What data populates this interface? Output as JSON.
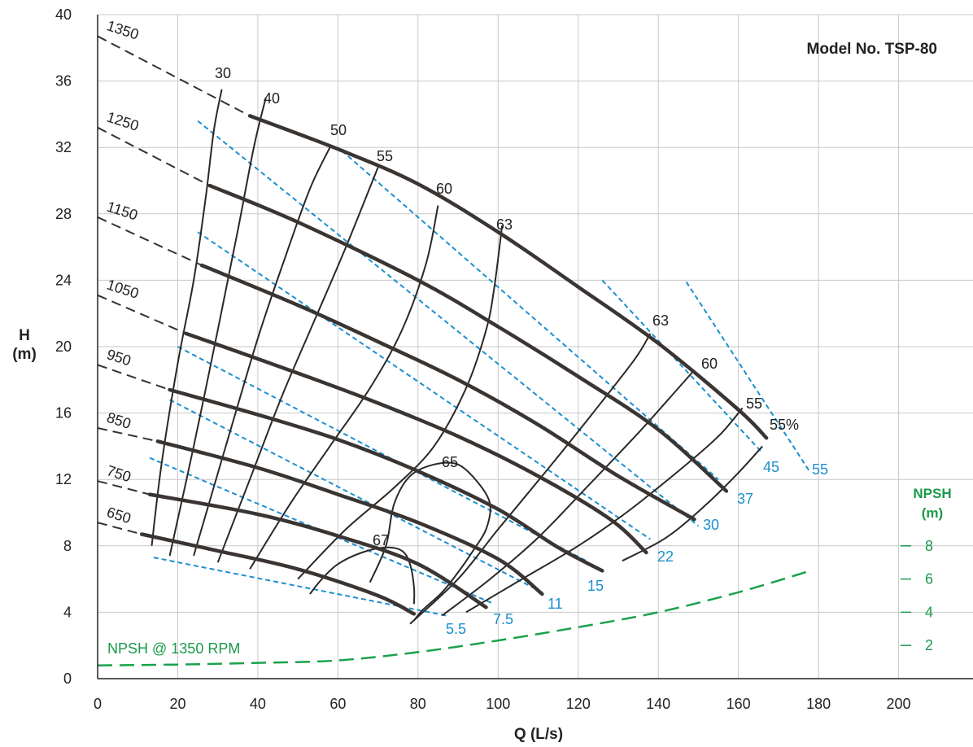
{
  "chart_data": {
    "type": "line",
    "title": "Model No. TSP-80",
    "xlabel": "Q (L/s)",
    "ylabel_line1": "H",
    "ylabel_line2": "(m)",
    "xlim": [
      0,
      220
    ],
    "ylim": [
      0,
      40
    ],
    "x_ticks": [
      0,
      20,
      40,
      60,
      80,
      100,
      120,
      140,
      160,
      180,
      200
    ],
    "y_ticks": [
      0,
      4,
      8,
      12,
      16,
      20,
      24,
      28,
      32,
      36,
      40
    ],
    "grid": true,
    "npsh_axis": {
      "title_line1": "NPSH",
      "title_line2": "(m)",
      "ticks": [
        {
          "label": "2",
          "h": 2
        },
        {
          "label": "4",
          "h": 4
        },
        {
          "label": "6",
          "h": 6
        },
        {
          "label": "8",
          "h": 8
        }
      ]
    },
    "speed_curves": [
      {
        "label": "1350",
        "dashed": [
          [
            0,
            38.7
          ],
          [
            38,
            33.9
          ]
        ],
        "solid": [
          [
            38,
            33.9
          ],
          [
            60,
            31.9
          ],
          [
            80,
            29.8
          ],
          [
            100,
            26.9
          ],
          [
            120,
            23.6
          ],
          [
            140,
            20.2
          ],
          [
            160,
            16.2
          ],
          [
            167,
            14.5
          ]
        ]
      },
      {
        "label": "1250",
        "dashed": [
          [
            0,
            33.2
          ],
          [
            28,
            29.7
          ]
        ],
        "solid": [
          [
            28,
            29.7
          ],
          [
            50,
            27.5
          ],
          [
            80,
            24.0
          ],
          [
            100,
            21.2
          ],
          [
            120,
            18.2
          ],
          [
            140,
            15.0
          ],
          [
            157,
            11.3
          ]
        ]
      },
      {
        "label": "1150",
        "dashed": [
          [
            0,
            27.8
          ],
          [
            26,
            24.9
          ]
        ],
        "solid": [
          [
            26,
            24.9
          ],
          [
            50,
            22.5
          ],
          [
            70,
            20.3
          ],
          [
            90,
            18.0
          ],
          [
            110,
            15.3
          ],
          [
            130,
            12.2
          ],
          [
            149,
            9.6
          ]
        ]
      },
      {
        "label": "1050",
        "dashed": [
          [
            0,
            23.1
          ],
          [
            22,
            20.8
          ]
        ],
        "solid": [
          [
            22,
            20.8
          ],
          [
            50,
            18.4
          ],
          [
            70,
            16.6
          ],
          [
            90,
            14.6
          ],
          [
            110,
            12.2
          ],
          [
            128,
            9.6
          ],
          [
            137,
            7.6
          ]
        ]
      },
      {
        "label": "950",
        "dashed": [
          [
            0,
            18.9
          ],
          [
            18,
            17.4
          ]
        ],
        "solid": [
          [
            18,
            17.4
          ],
          [
            40,
            15.9
          ],
          [
            60,
            14.4
          ],
          [
            80,
            12.5
          ],
          [
            100,
            10.2
          ],
          [
            115,
            7.9
          ],
          [
            126,
            6.5
          ]
        ]
      },
      {
        "label": "850",
        "dashed": [
          [
            0,
            15.1
          ],
          [
            15,
            14.3
          ]
        ],
        "solid": [
          [
            15,
            14.3
          ],
          [
            40,
            12.7
          ],
          [
            60,
            11.1
          ],
          [
            80,
            9.4
          ],
          [
            100,
            7.2
          ],
          [
            111,
            5.1
          ]
        ]
      },
      {
        "label": "750",
        "dashed": [
          [
            0,
            11.9
          ],
          [
            13,
            11.1
          ]
        ],
        "solid": [
          [
            13,
            11.1
          ],
          [
            40,
            9.9
          ],
          [
            60,
            8.6
          ],
          [
            80,
            6.9
          ],
          [
            97,
            4.3
          ]
        ]
      },
      {
        "label": "650",
        "dashed": [
          [
            0,
            9.4
          ],
          [
            11,
            8.7
          ]
        ],
        "solid": [
          [
            11,
            8.7
          ],
          [
            30,
            7.7
          ],
          [
            50,
            6.6
          ],
          [
            70,
            5.0
          ],
          [
            79,
            3.9
          ]
        ]
      }
    ],
    "efficiency_curves": [
      {
        "label": "30",
        "points": [
          [
            13.5,
            8.0
          ],
          [
            16,
            13
          ],
          [
            20,
            19
          ],
          [
            24,
            24
          ],
          [
            27,
            29
          ],
          [
            29,
            33
          ],
          [
            31,
            35.5
          ]
        ]
      },
      {
        "label": "40",
        "points": [
          [
            18,
            7.4
          ],
          [
            24,
            14
          ],
          [
            30,
            21
          ],
          [
            35,
            27
          ],
          [
            39,
            32
          ],
          [
            42,
            35
          ]
        ]
      },
      {
        "label": "50",
        "points": [
          [
            24,
            7.4
          ],
          [
            32,
            14
          ],
          [
            40,
            20.5
          ],
          [
            47,
            25.5
          ],
          [
            53,
            29.5
          ],
          [
            58,
            32
          ]
        ]
      },
      {
        "label": "55",
        "points": [
          [
            30,
            7.0
          ],
          [
            38,
            12
          ],
          [
            46,
            17
          ],
          [
            54,
            21.5
          ],
          [
            62,
            26
          ],
          [
            70,
            30.8
          ]
        ]
      },
      {
        "label": "60",
        "points": [
          [
            38,
            6.6
          ],
          [
            48,
            10.5
          ],
          [
            58,
            14
          ],
          [
            68,
            17.5
          ],
          [
            76,
            21
          ],
          [
            82,
            25
          ],
          [
            85,
            28.5
          ]
        ]
      },
      {
        "label": "63",
        "points": [
          [
            50,
            6.0
          ],
          [
            62,
            9.0
          ],
          [
            74,
            11.5
          ],
          [
            84,
            14
          ],
          [
            92,
            17.5
          ],
          [
            97,
            21
          ],
          [
            99,
            23.5
          ],
          [
            101,
            27.3
          ]
        ]
      },
      {
        "label": "65",
        "points": [
          [
            68,
            5.8
          ],
          [
            72,
            8.0
          ],
          [
            74,
            10.5
          ],
          [
            78,
            12.2
          ],
          [
            84,
            12.9
          ],
          [
            90,
            12.9
          ],
          [
            95,
            11.8
          ],
          [
            98,
            10.5
          ],
          [
            97,
            9.0
          ],
          [
            94,
            7.8
          ],
          [
            90,
            6.4
          ],
          [
            86,
            5.2
          ],
          [
            81,
            4.1
          ],
          [
            79,
            3.5
          ]
        ]
      },
      {
        "label": "67",
        "points": [
          [
            53,
            5.1
          ],
          [
            56,
            6.0
          ],
          [
            60,
            6.9
          ],
          [
            66,
            7.6
          ],
          [
            72,
            7.9
          ],
          [
            76,
            7.7
          ],
          [
            78,
            6.9
          ],
          [
            79,
            5.5
          ],
          [
            79,
            4.5
          ]
        ]
      },
      {
        "label": "63",
        "points": [
          [
            78,
            3.3
          ],
          [
            90,
            6
          ],
          [
            100,
            9
          ],
          [
            112,
            12.5
          ],
          [
            123,
            15.8
          ],
          [
            134,
            19.2
          ],
          [
            138,
            20.8
          ]
        ]
      },
      {
        "label": "60",
        "points": [
          [
            86,
            3.8
          ],
          [
            98,
            6
          ],
          [
            110,
            8.5
          ],
          [
            122,
            11.5
          ],
          [
            135,
            14.8
          ],
          [
            145,
            17.5
          ],
          [
            149,
            18.6
          ]
        ]
      },
      {
        "label": "55",
        "points": [
          [
            92,
            4.0
          ],
          [
            106,
            6
          ],
          [
            120,
            8.0
          ],
          [
            132,
            10
          ],
          [
            145,
            12.5
          ],
          [
            155,
            14.6
          ],
          [
            161,
            16.3
          ]
        ]
      },
      {
        "label": "55%",
        "points": [
          [
            131,
            7.1
          ],
          [
            142,
            8.5
          ],
          [
            152,
            10.5
          ],
          [
            160,
            12.4
          ],
          [
            166,
            14
          ]
        ]
      }
    ],
    "power_lines": [
      {
        "label": "5.5",
        "points": [
          [
            14,
            7.3
          ],
          [
            87,
            3.8
          ]
        ]
      },
      {
        "label": "7.5",
        "points": [
          [
            13,
            13.3
          ],
          [
            99,
            4.5
          ]
        ]
      },
      {
        "label": "11",
        "points": [
          [
            18,
            16.8
          ],
          [
            111,
            5.2
          ]
        ]
      },
      {
        "label": "15",
        "points": [
          [
            20,
            20.0
          ],
          [
            122,
            7.1
          ]
        ]
      },
      {
        "label": "22",
        "points": [
          [
            25,
            26.9
          ],
          [
            138,
            8.4
          ]
        ]
      },
      {
        "label": "30",
        "points": [
          [
            25,
            33.6
          ],
          [
            150,
            9.2
          ]
        ]
      },
      {
        "label": "37",
        "points": [
          [
            61,
            31.8
          ],
          [
            155,
            12.0
          ]
        ]
      },
      {
        "label": "45",
        "points": [
          [
            126,
            24.0
          ],
          [
            166,
            13.6
          ]
        ]
      },
      {
        "label": "55",
        "points": [
          [
            147,
            23.9
          ],
          [
            178,
            12.4
          ]
        ]
      }
    ],
    "npsh_curve": {
      "label": "NPSH @ 1350 RPM",
      "points": [
        [
          0,
          0.8
        ],
        [
          20,
          0.85
        ],
        [
          40,
          0.95
        ],
        [
          60,
          1.1
        ],
        [
          80,
          1.6
        ],
        [
          100,
          2.3
        ],
        [
          120,
          3.1
        ],
        [
          140,
          4.0
        ],
        [
          160,
          5.2
        ],
        [
          178,
          6.5
        ]
      ]
    }
  }
}
